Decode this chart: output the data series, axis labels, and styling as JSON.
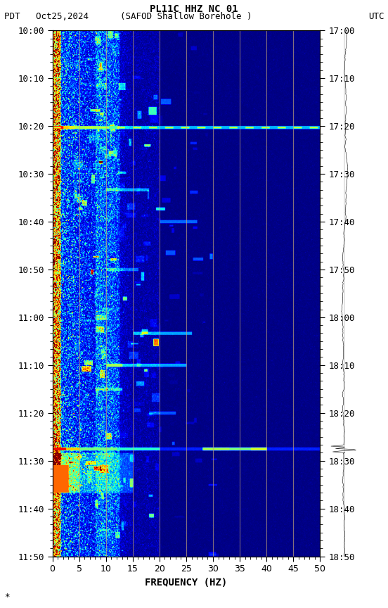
{
  "title_line1": "PL11C HHZ NC 01",
  "title_line2_left": "PDT   Oct25,2024      (SAFOD Shallow Borehole )",
  "title_line2_right": "UTC",
  "xlabel": "FREQUENCY (HZ)",
  "freq_min": 0,
  "freq_max": 50,
  "left_yticks": [
    "10:00",
    "10:10",
    "10:20",
    "10:30",
    "10:40",
    "10:50",
    "11:00",
    "11:10",
    "11:20",
    "11:30",
    "11:40",
    "11:50"
  ],
  "right_yticks": [
    "17:00",
    "17:10",
    "17:20",
    "17:30",
    "17:40",
    "17:50",
    "18:00",
    "18:10",
    "18:20",
    "18:30",
    "18:40",
    "18:50"
  ],
  "xticks": [
    0,
    5,
    10,
    15,
    20,
    25,
    30,
    35,
    40,
    45,
    50
  ],
  "vertical_lines_freq": [
    5,
    10,
    15,
    20,
    25,
    30,
    35,
    40,
    45
  ],
  "fig_width": 5.52,
  "fig_height": 8.64,
  "dpi": 100,
  "font_family": "monospace",
  "colormap": "jet",
  "title_fontsize": 10,
  "label_fontsize": 9,
  "xlabel_fontsize": 10
}
